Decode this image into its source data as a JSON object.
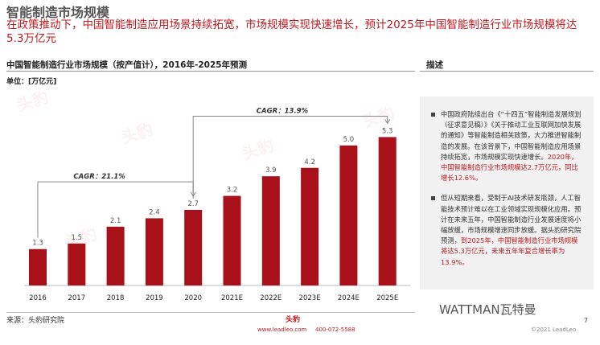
{
  "page": {
    "title": "智能制造市场规模",
    "subtitle": "在政策推动下，中国智能制造应用场景持续拓宽，市场规模实现快速增长，预计2025年中国智能制造行业市场规模将达5.3万亿元",
    "chart_heading": "中国智能制造行业市场规模（按产值计），2016年-2025年预测",
    "unit_label": "单位：[万亿元]",
    "source": "来源：头豹研究院",
    "desc_heading": "描述",
    "page_number": "7",
    "logo_text": "头豹",
    "footer_site": "www.leadleo.com",
    "footer_phone": "400-072-5588",
    "copyright": "©2021 LeadLeo",
    "wechat_mark": "WATTMAN瓦特曼",
    "watermark": "头豹"
  },
  "description": {
    "p1_main": "中国政府陆续出台《“十四五”智能制造发展规划（征求意见稿）》《关于推动工业互联网加快发展的通知》等智能制造相关政策，大力推进智能制造的发展。在该背景下，中国智能制造应用场景持续拓宽，市场规模实现快速增长。",
    "p1_highlight": "2020年，中国智能制造行业市场规模达2.7万亿元，同比增长12.6%。",
    "p2_main": "但从短期来看，受制于AI技术研发瓶颈，人工智能技术预计难以在工业领域实现规模化应用。预计在未来五年，中国智能制造行业发展速度将小幅放缓，市场规模增速同步放缓。据头豹研究院预测，",
    "p2_highlight": "到2025年，中国智能制造行业市场规模将达5.3万亿元，未来五年年复合增长率为13.9%。"
  },
  "chart_data": {
    "type": "bar",
    "categories": [
      "2016",
      "2017",
      "2018",
      "2019",
      "2020",
      "2021E",
      "2022E",
      "2023E",
      "2024E",
      "2025E"
    ],
    "values": [
      1.3,
      1.5,
      2.1,
      2.4,
      2.7,
      3.2,
      3.9,
      4.2,
      5.0,
      5.3
    ],
    "value_labels": [
      "1.3",
      "1.5",
      "2.1",
      "2.4",
      "2.7",
      "3.2",
      "3.9",
      "4.2",
      "5.0",
      "5.3"
    ],
    "ylim": [
      0,
      5.6
    ],
    "bar_color": "#a8101a",
    "annotations": [
      {
        "text": "CAGR：21.1%",
        "from": "2016",
        "to": "2020"
      },
      {
        "text": "CAGR：13.9%",
        "from": "2020",
        "to": "2025E"
      }
    ],
    "grid": false,
    "legend": "none"
  }
}
